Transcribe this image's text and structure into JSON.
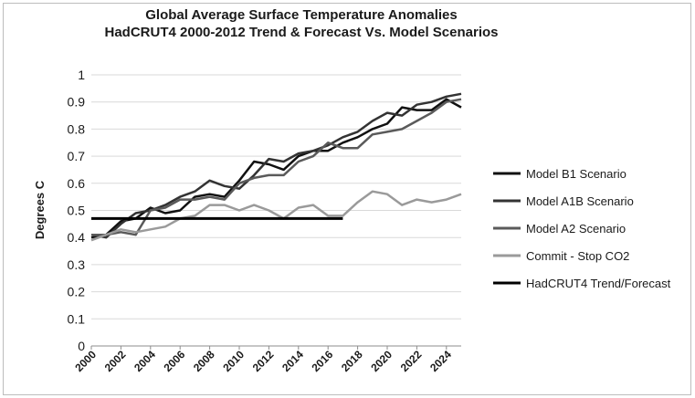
{
  "chart_data": {
    "type": "line",
    "title": "Global Average Surface Temperature Anomalies",
    "subtitle": "HadCRUT4 2000-2012 Trend & Forecast Vs. Model Scenarios",
    "xlabel": "",
    "ylabel": "Degrees C",
    "xlim": [
      2000,
      2025
    ],
    "ylim": [
      0,
      1
    ],
    "x_ticks": [
      "2000",
      "2002",
      "2004",
      "2006",
      "2008",
      "2010",
      "2012",
      "2014",
      "2016",
      "2018",
      "2020",
      "2022",
      "2024"
    ],
    "y_ticks": [
      "0",
      "0.1",
      "0.2",
      "0.3",
      "0.4",
      "0.5",
      "0.6",
      "0.7",
      "0.8",
      "0.9",
      "1"
    ],
    "grid": "horizontal",
    "legend": "right",
    "x": [
      2000,
      2001,
      2002,
      2003,
      2004,
      2005,
      2006,
      2007,
      2008,
      2009,
      2010,
      2011,
      2012,
      2013,
      2014,
      2015,
      2016,
      2017,
      2018,
      2019,
      2020,
      2021,
      2022,
      2023,
      2024,
      2025
    ],
    "series": [
      {
        "name": "Model B1 Scenario",
        "color": "#111111",
        "values": [
          0.4,
          0.41,
          0.46,
          0.47,
          0.51,
          0.49,
          0.5,
          0.55,
          0.56,
          0.55,
          0.61,
          0.68,
          0.67,
          0.65,
          0.7,
          0.72,
          0.72,
          0.75,
          0.77,
          0.8,
          0.82,
          0.88,
          0.87,
          0.87,
          0.91,
          0.88
        ]
      },
      {
        "name": "Model A1B Scenario",
        "color": "#333333",
        "values": [
          0.41,
          0.4,
          0.45,
          0.49,
          0.5,
          0.52,
          0.55,
          0.57,
          0.61,
          0.59,
          0.58,
          0.63,
          0.69,
          0.68,
          0.71,
          0.72,
          0.74,
          0.77,
          0.79,
          0.83,
          0.86,
          0.85,
          0.89,
          0.9,
          0.92,
          0.93
        ]
      },
      {
        "name": "Model A2 Scenario",
        "color": "#5a5a5a",
        "values": [
          0.41,
          0.41,
          0.42,
          0.41,
          0.5,
          0.51,
          0.54,
          0.54,
          0.55,
          0.54,
          0.6,
          0.62,
          0.63,
          0.63,
          0.68,
          0.7,
          0.75,
          0.73,
          0.73,
          0.78,
          0.79,
          0.8,
          0.83,
          0.86,
          0.9,
          0.91
        ]
      },
      {
        "name": "Commit - Stop CO2",
        "color": "#9a9a9a",
        "values": [
          0.39,
          0.41,
          0.43,
          0.42,
          0.43,
          0.44,
          0.47,
          0.48,
          0.52,
          0.52,
          0.5,
          0.52,
          0.5,
          0.47,
          0.51,
          0.52,
          0.48,
          0.48,
          0.53,
          0.57,
          0.56,
          0.52,
          0.54,
          0.53,
          0.54,
          0.56
        ]
      },
      {
        "name": "HadCRUT4 Trend/Forecast",
        "color": "#000000",
        "x": [
          2000,
          2017
        ],
        "values": [
          0.47,
          0.47
        ]
      }
    ]
  }
}
